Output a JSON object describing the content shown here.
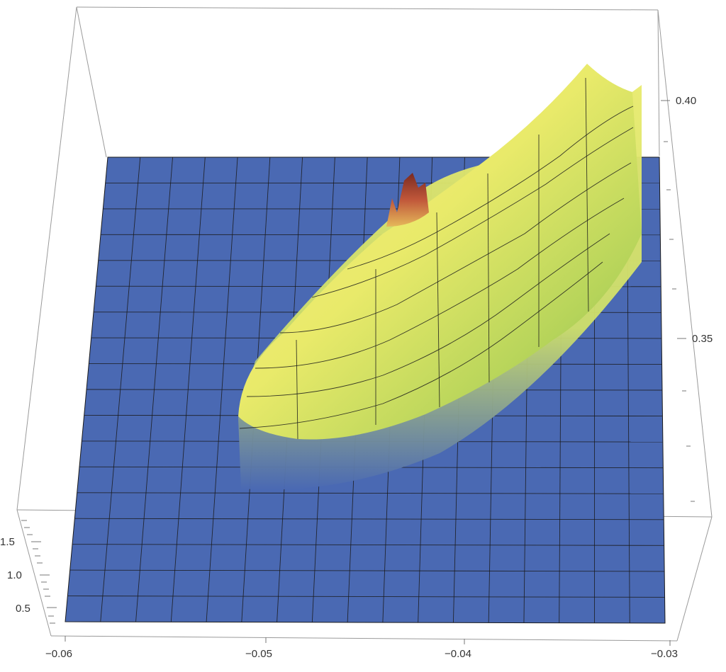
{
  "chart_data": {
    "type": "surface3d",
    "title": "",
    "xlabel": "",
    "ylabel": "",
    "zlabel": "",
    "x_axis": {
      "range": [
        -0.06,
        -0.03
      ],
      "ticks": [
        -0.06,
        -0.05,
        -0.04,
        -0.03
      ],
      "tick_labels": [
        "−0.06",
        "−0.05",
        "−0.04",
        "−0.03"
      ]
    },
    "y_axis": {
      "range": [
        0.32,
        0.42
      ],
      "ticks": [
        0.35,
        0.4
      ],
      "tick_labels": [
        "0.35",
        "0.40"
      ]
    },
    "z_axis": {
      "range": [
        0.2,
        1.9
      ],
      "ticks": [
        0.5,
        1.0,
        1.5
      ],
      "tick_labels": [
        "0.5",
        "1.0",
        "1.5"
      ]
    },
    "mesh": true,
    "colors": {
      "floor": "#4a69b3",
      "ridge_light": "#f4f07a",
      "ridge_mid": "#c5dc5a",
      "ridge_green": "#7fb24a",
      "peak": "#a0352a",
      "mesh": "#1a1a1a",
      "box": "#9a9a9a"
    },
    "features": [
      {
        "description_text": "",
        "x": -0.0425,
        "y": 0.385,
        "z": 1.8
      },
      {
        "x": -0.034,
        "y": 0.418,
        "z": 1.6
      }
    ]
  }
}
